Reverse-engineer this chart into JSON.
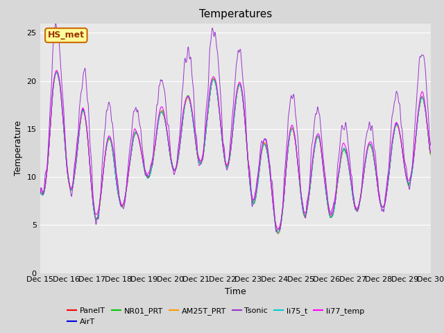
{
  "title": "Temperatures",
  "xlabel": "Time",
  "ylabel": "Temperature",
  "ylim": [
    0,
    26
  ],
  "xlim": [
    0,
    360
  ],
  "x_tick_labels": [
    "Dec 15",
    "Dec 16",
    "Dec 17",
    "Dec 18",
    "Dec 19",
    "Dec 20",
    "Dec 21",
    "Dec 22",
    "Dec 23",
    "Dec 24",
    "Dec 25",
    "Dec 26",
    "Dec 27",
    "Dec 28",
    "Dec 29",
    "Dec 30"
  ],
  "x_tick_positions": [
    0,
    24,
    48,
    72,
    96,
    120,
    144,
    168,
    192,
    216,
    240,
    264,
    288,
    312,
    336,
    360
  ],
  "series": [
    {
      "name": "PanelT",
      "color": "#ff0000"
    },
    {
      "name": "AirT",
      "color": "#0000dd"
    },
    {
      "name": "NR01_PRT",
      "color": "#00cc00"
    },
    {
      "name": "AM25T_PRT",
      "color": "#ff9900"
    },
    {
      "name": "Tsonic",
      "color": "#9933cc"
    },
    {
      "name": "li75_t",
      "color": "#00cccc"
    },
    {
      "name": "li77_temp",
      "color": "#ff00ff"
    }
  ],
  "annotation_text": "HS_met",
  "annotation_bg": "#ffff99",
  "annotation_border": "#cc6600",
  "annotation_text_color": "#993300",
  "plot_bg": "#e8e8e8",
  "fig_bg": "#d8d8d8",
  "grid_color": "#ffffff",
  "title_fontsize": 11,
  "label_fontsize": 9,
  "tick_fontsize": 8
}
